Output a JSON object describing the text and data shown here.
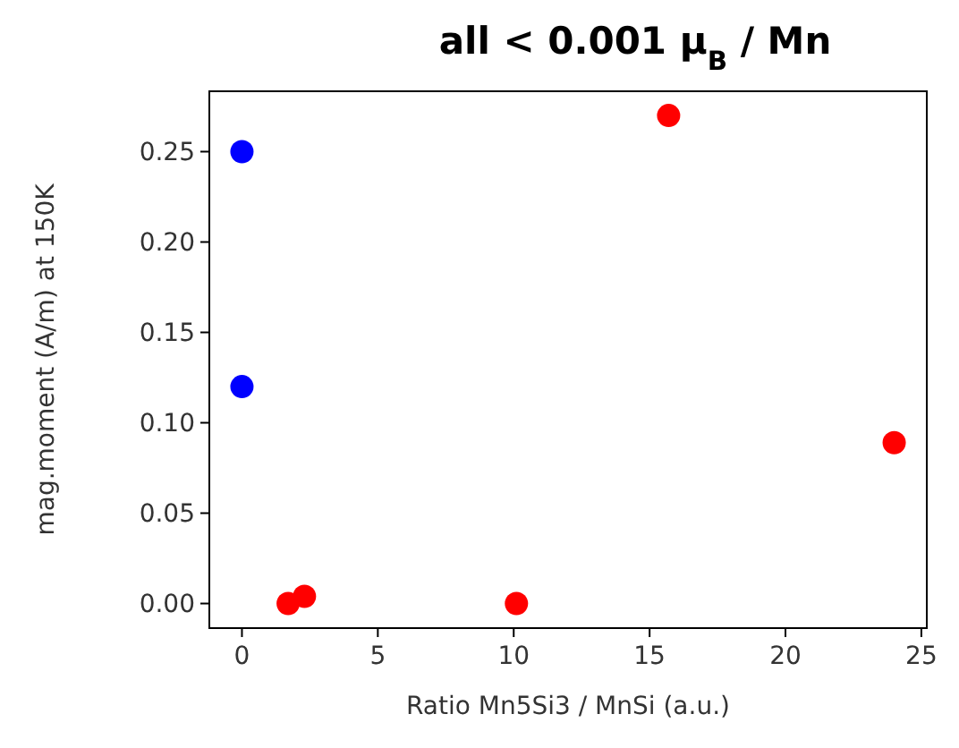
{
  "chart_data": {
    "type": "scatter",
    "title": "all < 0.001 μ$_{B}$ / Mn",
    "xlabel": "Ratio Mn5Si3 / MnSi (a.u.)",
    "ylabel": "mag.moment (A/m) at 150K",
    "xlim": [
      -1.2,
      25.2
    ],
    "ylim": [
      -0.0136,
      0.2834
    ],
    "xticks": [
      0,
      5,
      10,
      15,
      20,
      25
    ],
    "yticks": [
      {
        "value": 0,
        "label": "0.00"
      },
      {
        "value": 0.05,
        "label": "0.05"
      },
      {
        "value": 0.1,
        "label": "0.10"
      },
      {
        "value": 0.15,
        "label": "0.15"
      },
      {
        "value": 0.2,
        "label": "0.20"
      },
      {
        "value": 0.25,
        "label": "0.25"
      }
    ],
    "marker": "circle",
    "grid": false,
    "series": [
      {
        "color": "#0000ff",
        "x": [
          0,
          0
        ],
        "values": [
          0.25,
          0.12
        ]
      },
      {
        "color": "#ff0000",
        "x": [
          1.7,
          2.3,
          10.1,
          15.7,
          24
        ],
        "values": [
          0,
          0.004,
          0,
          0.27,
          0.089
        ]
      }
    ]
  }
}
